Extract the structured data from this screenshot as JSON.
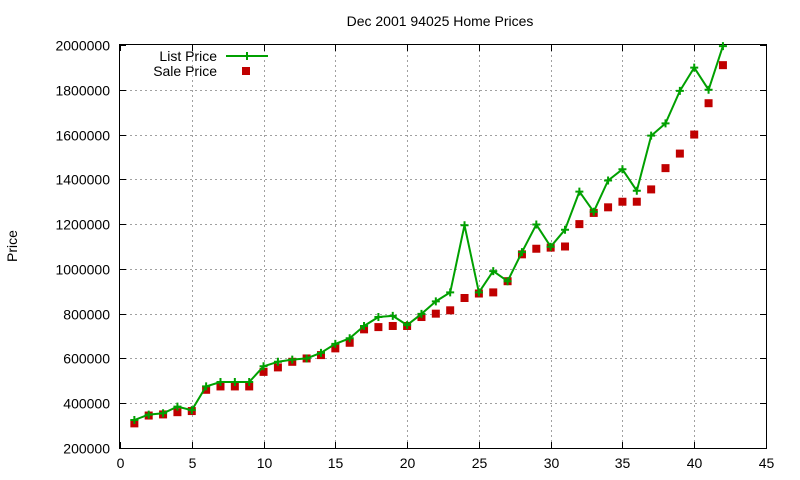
{
  "chart_data": {
    "type": "line",
    "title": "Dec 2001 94025 Home Prices",
    "xlabel": "",
    "ylabel": "Price",
    "xlim": [
      0,
      45
    ],
    "ylim": [
      200000,
      2000000
    ],
    "x_ticks": [
      "0",
      "5",
      "10",
      "15",
      "20",
      "25",
      "30",
      "35",
      "40",
      "45"
    ],
    "y_ticks": [
      "200000",
      "400000",
      "600000",
      "800000",
      "1000000",
      "1200000",
      "1400000",
      "1600000",
      "1800000",
      "2000000"
    ],
    "grid": true,
    "legend_position": "top-left",
    "series": [
      {
        "name": "List Price",
        "style": "line+cross",
        "color": "#00a000",
        "x": [
          1,
          2,
          3,
          4,
          5,
          6,
          7,
          8,
          9,
          10,
          11,
          12,
          13,
          14,
          15,
          16,
          17,
          18,
          19,
          20,
          21,
          22,
          23,
          24,
          25,
          26,
          27,
          28,
          29,
          30,
          31,
          32,
          33,
          34,
          35,
          36,
          37,
          38,
          39,
          40,
          41,
          42
        ],
        "y": [
          325000,
          349000,
          355000,
          385000,
          369000,
          475000,
          495000,
          495000,
          495000,
          565000,
          585000,
          595000,
          600000,
          625000,
          665000,
          690000,
          745000,
          785000,
          790000,
          749000,
          799000,
          855000,
          895000,
          1195000,
          895000,
          990000,
          945000,
          1075000,
          1198000,
          1099000,
          1175000,
          1345000,
          1255000,
          1395000,
          1445000,
          1349000,
          1595000,
          1650000,
          1795000,
          1899000,
          1800000,
          1995000
        ]
      },
      {
        "name": "Sale Price",
        "style": "points",
        "color": "#c00000",
        "x": [
          1,
          2,
          3,
          4,
          5,
          6,
          7,
          8,
          9,
          10,
          11,
          12,
          13,
          14,
          15,
          16,
          17,
          18,
          19,
          20,
          21,
          22,
          23,
          24,
          25,
          26,
          27,
          28,
          29,
          30,
          31,
          32,
          33,
          34,
          35,
          36,
          37,
          38,
          39,
          40,
          41,
          42
        ],
        "y": [
          310000,
          345000,
          350000,
          360000,
          365000,
          460000,
          475000,
          475000,
          475000,
          540000,
          560000,
          585000,
          600000,
          615000,
          645000,
          670000,
          730000,
          740000,
          745000,
          745000,
          785000,
          800000,
          815000,
          870000,
          890000,
          895000,
          945000,
          1065000,
          1090000,
          1095000,
          1100000,
          1200000,
          1250000,
          1275000,
          1300000,
          1300000,
          1355000,
          1450000,
          1515000,
          1600000,
          1740000,
          1910000
        ]
      }
    ]
  }
}
